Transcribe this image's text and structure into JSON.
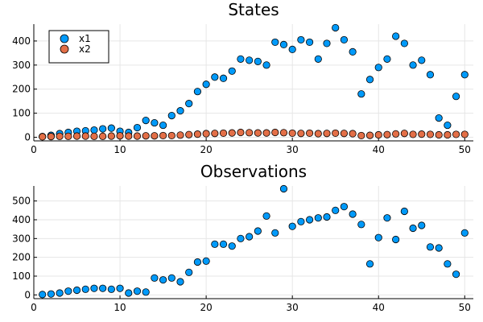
{
  "colors": {
    "x1": "#009AFA",
    "x2": "#E36F47"
  },
  "chart_data": [
    {
      "type": "scatter",
      "title": "States",
      "xlabel": "",
      "ylabel": "",
      "xlim": [
        0,
        51
      ],
      "ylim": [
        -15,
        470
      ],
      "xticks": [
        0,
        10,
        20,
        30,
        40,
        50
      ],
      "yticks": [
        0,
        100,
        200,
        300,
        400
      ],
      "grid": true,
      "legend": "top-left",
      "series": [
        {
          "name": "x1",
          "color": "#009AFA",
          "x": [
            1,
            2,
            3,
            4,
            5,
            6,
            7,
            8,
            9,
            10,
            11,
            12,
            13,
            14,
            15,
            16,
            17,
            18,
            19,
            20,
            21,
            22,
            23,
            24,
            25,
            26,
            27,
            28,
            29,
            30,
            31,
            32,
            33,
            34,
            35,
            36,
            37,
            38,
            39,
            40,
            41,
            42,
            43,
            44,
            45,
            46,
            47,
            48,
            49,
            50
          ],
          "y": [
            3,
            8,
            15,
            20,
            25,
            27,
            30,
            35,
            38,
            25,
            20,
            40,
            70,
            60,
            50,
            90,
            110,
            140,
            190,
            220,
            250,
            245,
            275,
            325,
            320,
            315,
            300,
            395,
            385,
            365,
            405,
            395,
            325,
            390,
            455,
            405,
            355,
            180,
            240,
            290,
            325,
            420,
            390,
            300,
            320,
            260,
            80,
            50,
            170,
            260
          ]
        },
        {
          "name": "x2",
          "color": "#E36F47",
          "x": [
            1,
            2,
            3,
            4,
            5,
            6,
            7,
            8,
            9,
            10,
            11,
            12,
            13,
            14,
            15,
            16,
            17,
            18,
            19,
            20,
            21,
            22,
            23,
            24,
            25,
            26,
            27,
            28,
            29,
            30,
            31,
            32,
            33,
            34,
            35,
            36,
            37,
            38,
            39,
            40,
            41,
            42,
            43,
            44,
            45,
            46,
            47,
            48,
            49,
            50
          ],
          "y": [
            2,
            3,
            4,
            4,
            5,
            5,
            4,
            4,
            5,
            6,
            5,
            5,
            6,
            6,
            7,
            7,
            9,
            11,
            13,
            15,
            16,
            17,
            18,
            20,
            19,
            18,
            18,
            20,
            19,
            17,
            16,
            17,
            15,
            16,
            17,
            16,
            15,
            7,
            8,
            10,
            11,
            14,
            16,
            12,
            13,
            12,
            10,
            10,
            12,
            12
          ]
        }
      ]
    },
    {
      "type": "scatter",
      "title": "Observations",
      "xlabel": "",
      "ylabel": "",
      "xlim": [
        0,
        51
      ],
      "ylim": [
        -20,
        580
      ],
      "xticks": [
        0,
        10,
        20,
        30,
        40,
        50
      ],
      "yticks": [
        0,
        100,
        200,
        300,
        400,
        500
      ],
      "grid": true,
      "legend": "none",
      "series": [
        {
          "name": "",
          "color": "#009AFA",
          "x": [
            1,
            2,
            3,
            4,
            5,
            6,
            7,
            8,
            9,
            10,
            11,
            12,
            13,
            14,
            15,
            16,
            17,
            18,
            19,
            20,
            21,
            22,
            23,
            24,
            25,
            26,
            27,
            28,
            29,
            30,
            31,
            32,
            33,
            34,
            35,
            36,
            37,
            38,
            39,
            40,
            41,
            42,
            43,
            44,
            45,
            46,
            47,
            48,
            49,
            50
          ],
          "y": [
            2,
            5,
            10,
            20,
            25,
            30,
            35,
            35,
            30,
            35,
            10,
            20,
            15,
            90,
            80,
            90,
            70,
            120,
            175,
            180,
            270,
            270,
            260,
            300,
            310,
            340,
            420,
            330,
            565,
            365,
            390,
            400,
            410,
            415,
            450,
            470,
            430,
            375,
            165,
            305,
            410,
            295,
            445,
            355,
            370,
            255,
            250,
            165,
            110,
            330
          ]
        }
      ]
    }
  ]
}
